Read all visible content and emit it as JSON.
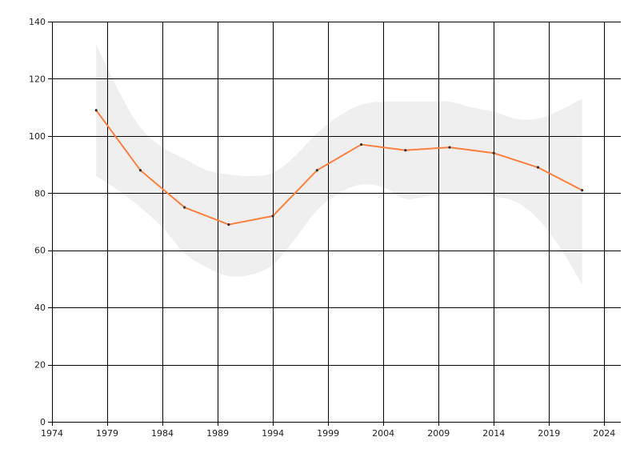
{
  "chart_data": {
    "type": "line",
    "title": "",
    "xlabel": "",
    "ylabel": "",
    "xlim": [
      1974,
      2025.5
    ],
    "ylim": [
      0,
      140
    ],
    "x_ticks": [
      1974,
      1979,
      1984,
      1989,
      1994,
      1999,
      2004,
      2009,
      2014,
      2019,
      2024
    ],
    "y_ticks": [
      0,
      20,
      40,
      60,
      80,
      100,
      120,
      140
    ],
    "grid": true,
    "legend": "none",
    "series": [
      {
        "x": [
          1978,
          1982,
          1986,
          1990,
          1994,
          1998,
          2002,
          2006,
          2010,
          2014,
          2018,
          2022
        ],
        "values": [
          109,
          88,
          75,
          69,
          72,
          88,
          97,
          95,
          96,
          94,
          89,
          81
        ],
        "color": "#ff7f3f",
        "marker_color": "#333333"
      }
    ],
    "confidence_band": {
      "x": [
        1978,
        1980,
        1982,
        1984,
        1986,
        1988,
        1990,
        1992,
        1994,
        1996,
        1998,
        2000,
        2002,
        2004,
        2006,
        2008,
        2010,
        2012,
        2014,
        2016,
        2018,
        2020,
        2022
      ],
      "upper": [
        132,
        116,
        103,
        96,
        92,
        88,
        86.5,
        86,
        87,
        93,
        101,
        107,
        111,
        112,
        112,
        112,
        112,
        110,
        108.5,
        106,
        106,
        109,
        113
      ],
      "lower": [
        86,
        81,
        75,
        68,
        59,
        54,
        51,
        51.5,
        55,
        64,
        74,
        80,
        83,
        82,
        78,
        79,
        80,
        80,
        79,
        77,
        71,
        61,
        48
      ],
      "color": "#efefef"
    }
  }
}
